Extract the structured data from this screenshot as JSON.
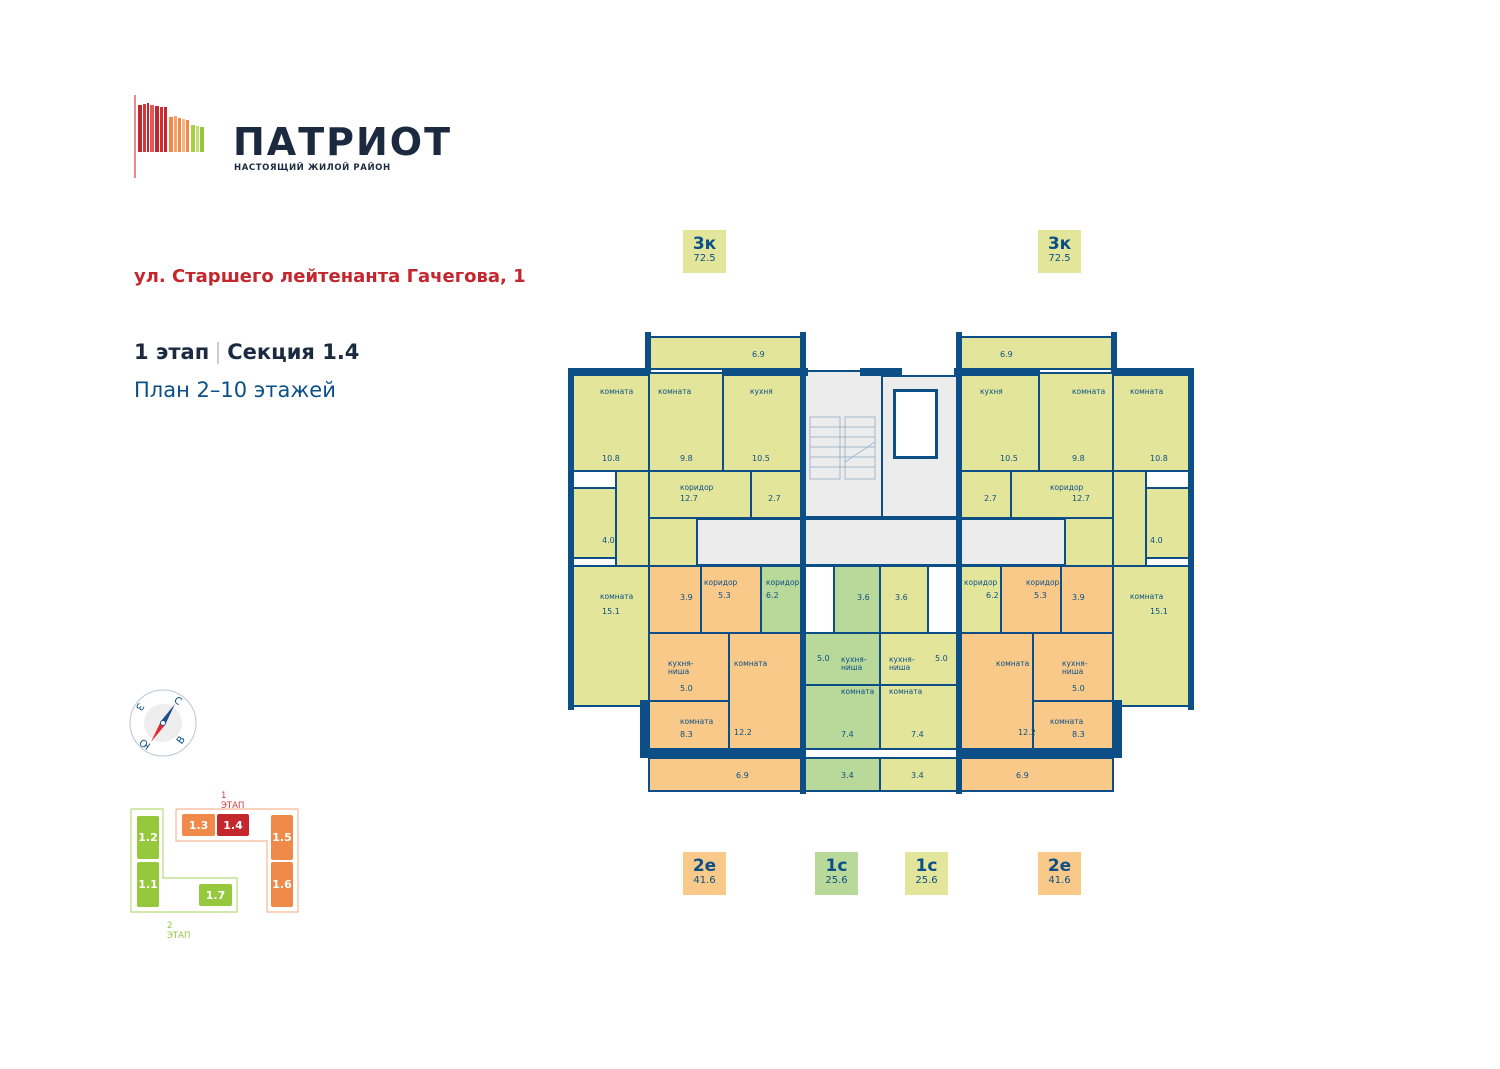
{
  "logo": {
    "name": "ПАТРИОТ",
    "tagline": "НАСТОЯЩИЙ ЖИЛОЙ РАЙОН"
  },
  "address": "ул. Старшего лейтенанта Гачегова, 1",
  "stage": {
    "stage": "1 этап",
    "section": "Секция 1.4"
  },
  "plan_title": "План 2–10 этажей",
  "colors": {
    "wall": "#0b4f86",
    "apt_3k": "#e3e69a",
    "apt_2e": "#f9c98a",
    "apt_1c_left": "#b9d99a",
    "apt_1c_right": "#e3e69a",
    "common": "#ececec",
    "accent": "#c4262e"
  },
  "apartments_top": [
    {
      "type": "3к",
      "area": "72.5"
    },
    {
      "type": "3к",
      "area": "72.5"
    }
  ],
  "apartments_bottom": [
    {
      "type": "2е",
      "area": "41.6"
    },
    {
      "type": "1с",
      "area": "25.6"
    },
    {
      "type": "1с",
      "area": "25.6"
    },
    {
      "type": "2е",
      "area": "41.6"
    }
  ],
  "plan": {
    "left": {
      "rooms": [
        {
          "label": "",
          "area": "6.9"
        },
        {
          "label": "комната",
          "area": "10.8"
        },
        {
          "label": "комната",
          "area": "9.8"
        },
        {
          "label": "кухня",
          "area": "10.5"
        },
        {
          "label": "коридор",
          "area": "12.7"
        },
        {
          "label": "",
          "area": "2.7"
        },
        {
          "label": "",
          "area": "4.0"
        },
        {
          "label": "",
          "area": ""
        },
        {
          "label": "комната",
          "area": "15.1"
        },
        {
          "label": "",
          "area": ""
        },
        {
          "label": "",
          "area": "3.9"
        },
        {
          "label": "коридор",
          "area": "5.3"
        },
        {
          "label": "коридор",
          "area": "6.2"
        },
        {
          "label": "кухня-\nниша",
          "area": "5.0"
        },
        {
          "label": "комната",
          "area": "8.3"
        },
        {
          "label": "комната",
          "area": "12.2"
        },
        {
          "label": "",
          "area": "6.9"
        },
        {
          "label": "",
          "area": "3.6"
        },
        {
          "label": "кухня-\nниша",
          "area": "5.0"
        },
        {
          "label": "комната",
          "area": "7.4"
        },
        {
          "label": "",
          "area": "3.4"
        }
      ]
    },
    "right": {
      "rooms": [
        {
          "label": "",
          "area": "6.9"
        },
        {
          "label": "комната",
          "area": "10.8"
        },
        {
          "label": "комната",
          "area": "9.8"
        },
        {
          "label": "кухня",
          "area": "10.5"
        },
        {
          "label": "коридор",
          "area": "12.7"
        },
        {
          "label": "",
          "area": "2.7"
        },
        {
          "label": "",
          "area": "4.0"
        },
        {
          "label": "",
          "area": ""
        },
        {
          "label": "комната",
          "area": "15.1"
        },
        {
          "label": "",
          "area": ""
        },
        {
          "label": "",
          "area": "3.9"
        },
        {
          "label": "коридор",
          "area": "5.3"
        },
        {
          "label": "коридор",
          "area": "6.2"
        },
        {
          "label": "кухня-\nниша",
          "area": "5.0"
        },
        {
          "label": "комната",
          "area": "8.3"
        },
        {
          "label": "комната",
          "area": "12.2"
        },
        {
          "label": "",
          "area": "6.9"
        },
        {
          "label": "",
          "area": "3.6"
        },
        {
          "label": "кухня-\nниша",
          "area": "5.0"
        },
        {
          "label": "комната",
          "area": "7.4"
        },
        {
          "label": "",
          "area": "3.4"
        }
      ]
    }
  },
  "compass": {
    "n": "С",
    "e": "В",
    "s": "Ю",
    "w": "З"
  },
  "site_plan": {
    "stage1_label": "1 ЭТАП",
    "stage2_label": "2 ЭТАП",
    "stage1_color": "#f08a4b",
    "stage2_color": "#95c83d",
    "current_color": "#c4262e",
    "sections": [
      "1.1",
      "1.2",
      "1.3",
      "1.4",
      "1.5",
      "1.6",
      "1.7"
    ],
    "current_section": "1.4"
  }
}
